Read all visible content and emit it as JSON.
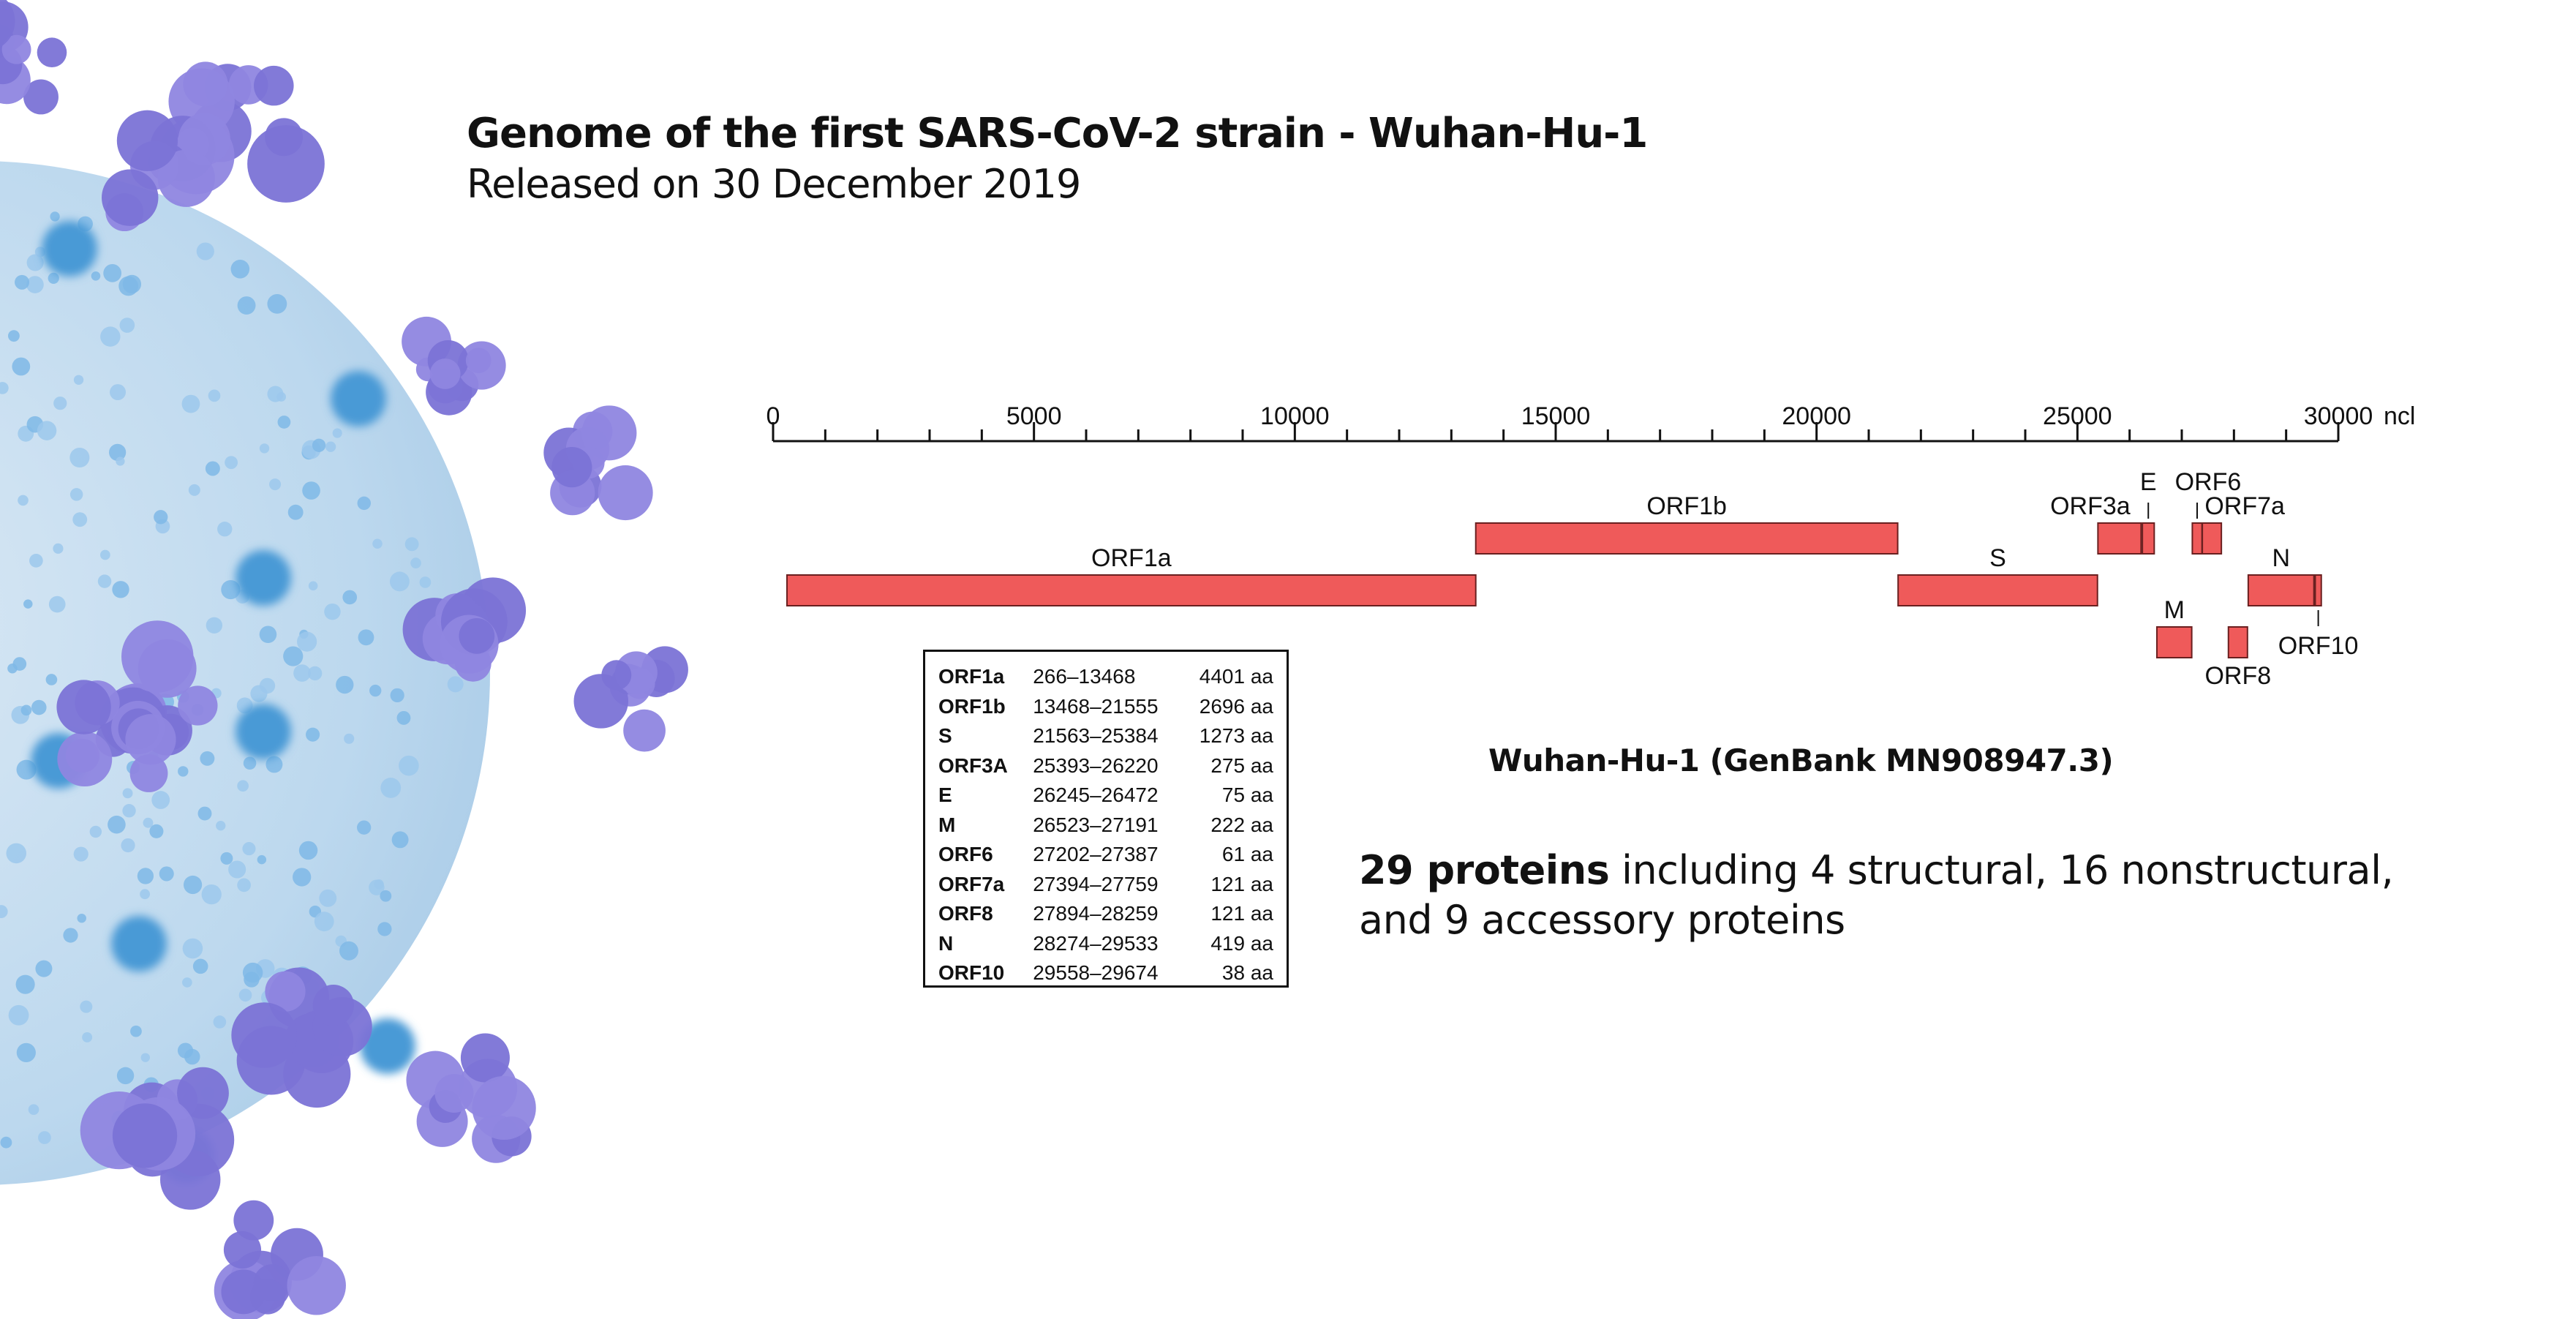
{
  "header": {
    "title": "Genome of the first SARS-CoV-2 strain - Wuhan-Hu-1",
    "subtitle": "Released on 30 December 2019"
  },
  "colors": {
    "gene_fill": "#ef5a5a",
    "gene_stroke": "#6a2020",
    "virus_body": "#bcd8ee",
    "virus_spike": "#7b73d6",
    "virus_receptor": "#4a9ad6"
  },
  "chart_data": {
    "type": "genome-map",
    "axis": {
      "min": 0,
      "max": 30000,
      "major_ticks": [
        0,
        5000,
        10000,
        15000,
        20000,
        25000,
        30000
      ],
      "minor_step": 1000,
      "unit": "ncl"
    },
    "genes": [
      {
        "name": "ORF1a",
        "start": 266,
        "end": 13468,
        "row": 0
      },
      {
        "name": "ORF1b",
        "start": 13468,
        "end": 21555,
        "row": 1
      },
      {
        "name": "S",
        "start": 21563,
        "end": 25384,
        "row": 0
      },
      {
        "name": "ORF3a",
        "start": 25393,
        "end": 26220,
        "row": 1
      },
      {
        "name": "E",
        "start": 26245,
        "end": 26472,
        "row": 1
      },
      {
        "name": "M",
        "start": 26523,
        "end": 27191,
        "row": 2
      },
      {
        "name": "ORF6",
        "start": 27202,
        "end": 27387,
        "row": 1
      },
      {
        "name": "ORF7a",
        "start": 27394,
        "end": 27759,
        "row": 1
      },
      {
        "name": "ORF8",
        "start": 27894,
        "end": 28259,
        "row": 2
      },
      {
        "name": "N",
        "start": 28274,
        "end": 29533,
        "row": 0
      },
      {
        "name": "ORF10",
        "start": 29558,
        "end": 29674,
        "row": 0
      }
    ]
  },
  "gene_table": [
    {
      "name": "ORF1a",
      "range": "266–13468",
      "aa": "4401 aa"
    },
    {
      "name": "ORF1b",
      "range": "13468–21555",
      "aa": "2696 aa"
    },
    {
      "name": "S",
      "range": "21563–25384",
      "aa": "1273 aa"
    },
    {
      "name": "ORF3A",
      "range": "25393–26220",
      "aa": "275 aa"
    },
    {
      "name": "E",
      "range": "26245–26472",
      "aa": "75 aa"
    },
    {
      "name": "M",
      "range": "26523–27191",
      "aa": "222 aa"
    },
    {
      "name": "ORF6",
      "range": "27202–27387",
      "aa": "61 aa"
    },
    {
      "name": "ORF7a",
      "range": "27394–27759",
      "aa": "121 aa"
    },
    {
      "name": "ORF8",
      "range": "27894–28259",
      "aa": "121 aa"
    },
    {
      "name": "N",
      "range": "28274–29533",
      "aa": "419 aa"
    },
    {
      "name": "ORF10",
      "range": "29558–29674",
      "aa": "38 aa"
    }
  ],
  "genbank_label": "Wuhan-Hu-1 (GenBank MN908947.3)",
  "summary": {
    "bold": "29 proteins",
    "text": " including  4 structural, 16 nonstructural, and 9 accessory proteins"
  }
}
